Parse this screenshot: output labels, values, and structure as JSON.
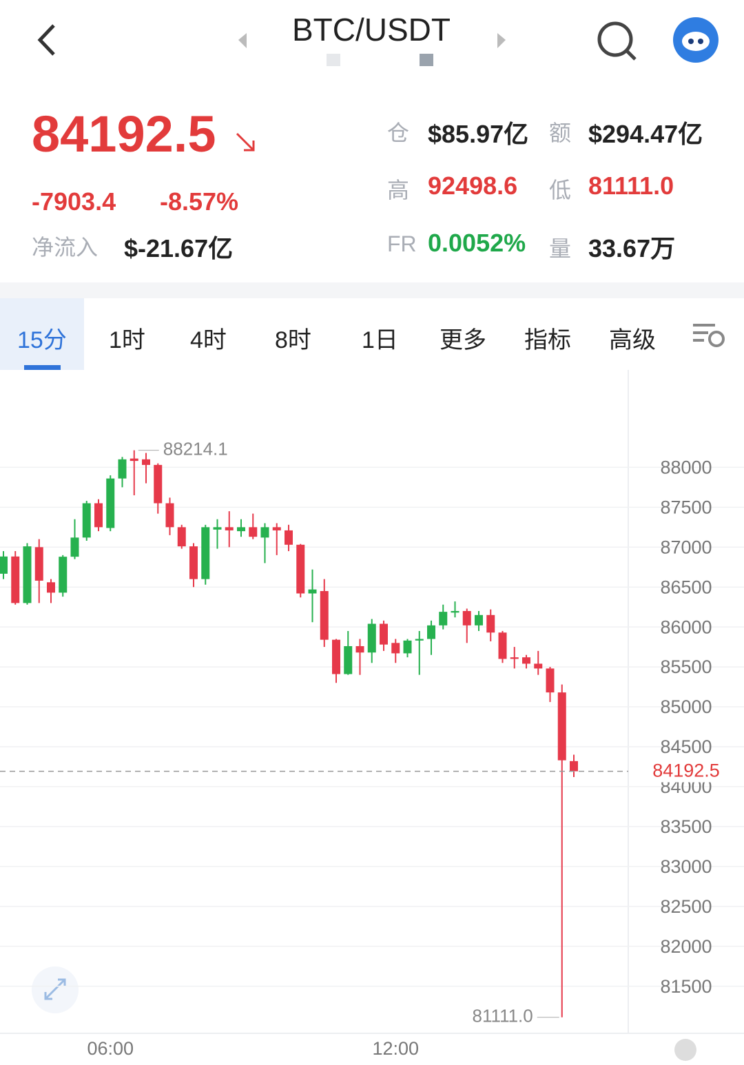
{
  "header": {
    "title": "BTC/USDT"
  },
  "stats": {
    "price": "84192.5",
    "change": "-7903.4",
    "change_pct": "-8.57%",
    "net_inflow_label": "净流入",
    "net_inflow": "$-21.67亿",
    "open_interest_label": "仓",
    "open_interest": "$85.97亿",
    "turnover_label": "额",
    "turnover": "$294.47亿",
    "high_label": "高",
    "high": "92498.6",
    "low_label": "低",
    "low": "81111.0",
    "funding_label": "FR",
    "funding": "0.0052%",
    "volume_label": "量",
    "volume": "33.67万"
  },
  "tabs": [
    "15分",
    "1时",
    "4时",
    "8时",
    "1日",
    "更多",
    "指标",
    "高级"
  ],
  "chart_data": {
    "type": "candlestick",
    "categories": [
      null,
      null,
      null,
      null,
      null,
      null,
      null,
      null,
      null,
      "06:00",
      null,
      null,
      null,
      null,
      null,
      null,
      null,
      null,
      null,
      null,
      null,
      null,
      null,
      null,
      null,
      null,
      null,
      null,
      null,
      null,
      null,
      null,
      null,
      "12:00",
      null,
      null,
      null,
      null,
      null,
      null,
      null,
      null,
      null,
      null,
      null,
      null,
      null,
      null,
      null
    ],
    "open": [
      86667,
      86883,
      86300,
      87000,
      86560,
      86430,
      86880,
      87120,
      87550,
      87240,
      87860,
      88110,
      88100,
      88030,
      87550,
      87250,
      87010,
      86600,
      87220,
      87250,
      87200,
      87250,
      87120,
      87250,
      87210,
      87030,
      86420,
      86450,
      85840,
      85410,
      85760,
      85680,
      86040,
      85800,
      85670,
      85830,
      85850,
      86020,
      86180,
      86200,
      86020,
      86150,
      85930,
      85620,
      85620,
      85540,
      85480,
      85180,
      84320
    ],
    "high": [
      86950,
      86950,
      87050,
      87100,
      86600,
      86900,
      87350,
      87580,
      87600,
      87900,
      88130,
      88214.1,
      88180,
      88050,
      87620,
      87280,
      87050,
      87280,
      87350,
      87450,
      87350,
      87420,
      87300,
      87300,
      87280,
      87040,
      86720,
      86600,
      85850,
      85950,
      85850,
      86100,
      86080,
      85850,
      85850,
      85950,
      86080,
      86280,
      86320,
      86230,
      86200,
      86220,
      85950,
      85750,
      85650,
      85700,
      85500,
      85280,
      84400
    ],
    "low": [
      86600,
      86280,
      86280,
      86300,
      86300,
      86380,
      86850,
      87080,
      87200,
      87200,
      87750,
      87650,
      87800,
      87420,
      87150,
      86980,
      86500,
      86530,
      86980,
      87000,
      87130,
      87100,
      86800,
      86900,
      86950,
      86370,
      86060,
      85750,
      85300,
      85400,
      85400,
      85550,
      85700,
      85550,
      85620,
      85400,
      85650,
      85970,
      86120,
      85800,
      85950,
      85820,
      85550,
      85480,
      85480,
      85400,
      85060,
      81111.0,
      84120
    ],
    "close": [
      86883,
      86300,
      87010,
      86580,
      86430,
      86880,
      87120,
      87550,
      87250,
      87860,
      88100,
      88080,
      88030,
      87550,
      87250,
      87010,
      86600,
      87250,
      87250,
      87210,
      87250,
      87130,
      87250,
      87210,
      87030,
      86420,
      86470,
      85840,
      85410,
      85760,
      85680,
      86040,
      85780,
      85670,
      85830,
      85850,
      86020,
      86190,
      86200,
      86020,
      86150,
      85930,
      85600,
      85600,
      85540,
      85480,
      85180,
      84330,
      84192.5
    ],
    "up_color": "#27b14f",
    "down_color": "#e6394a",
    "ylim": [
      80910,
      89220
    ],
    "yticks": [
      81500,
      82000,
      82500,
      83000,
      83500,
      84000,
      84500,
      85000,
      85500,
      86000,
      86500,
      87000,
      87500,
      88000
    ],
    "grid": true,
    "max_label": "88214.1",
    "min_label": "81111.0",
    "last_price": 84192.5
  }
}
